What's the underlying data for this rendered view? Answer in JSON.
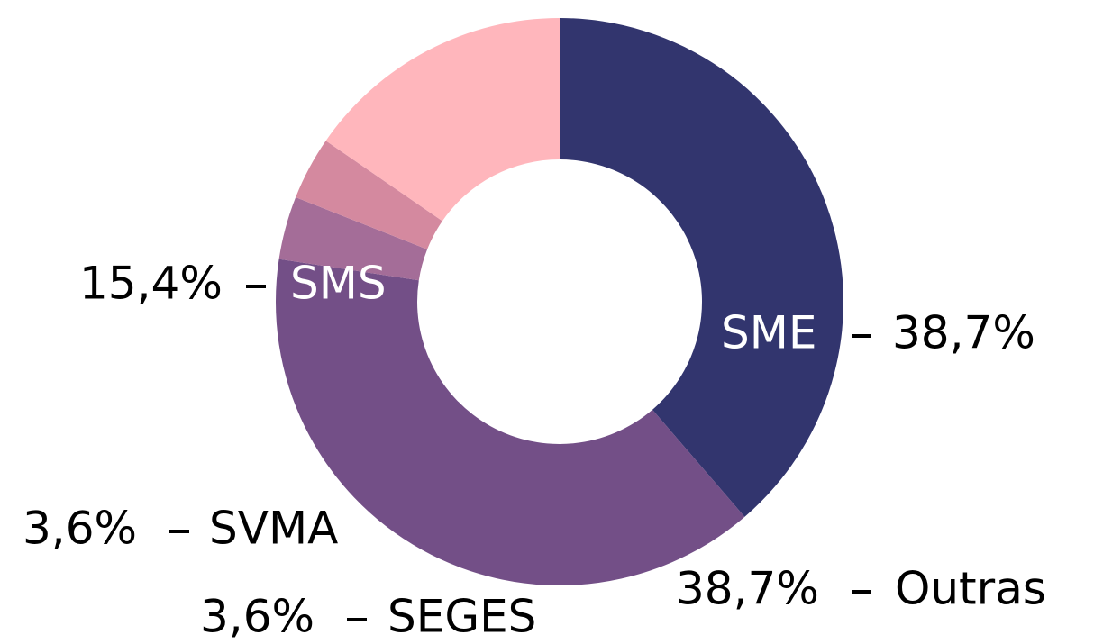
{
  "chart_data": {
    "type": "donut",
    "categories": [
      "SME",
      "Outras",
      "SEGES",
      "SVMA",
      "SMS"
    ],
    "values": [
      38.7,
      38.7,
      3.6,
      3.6,
      15.4
    ],
    "value_labels": [
      "38,7%",
      "38,7%",
      "3,6%",
      "3,6%",
      "15,4%"
    ],
    "colors": [
      "#32356e",
      "#734f87",
      "#a46d98",
      "#d4899f",
      "#ffb6bc"
    ]
  }
}
